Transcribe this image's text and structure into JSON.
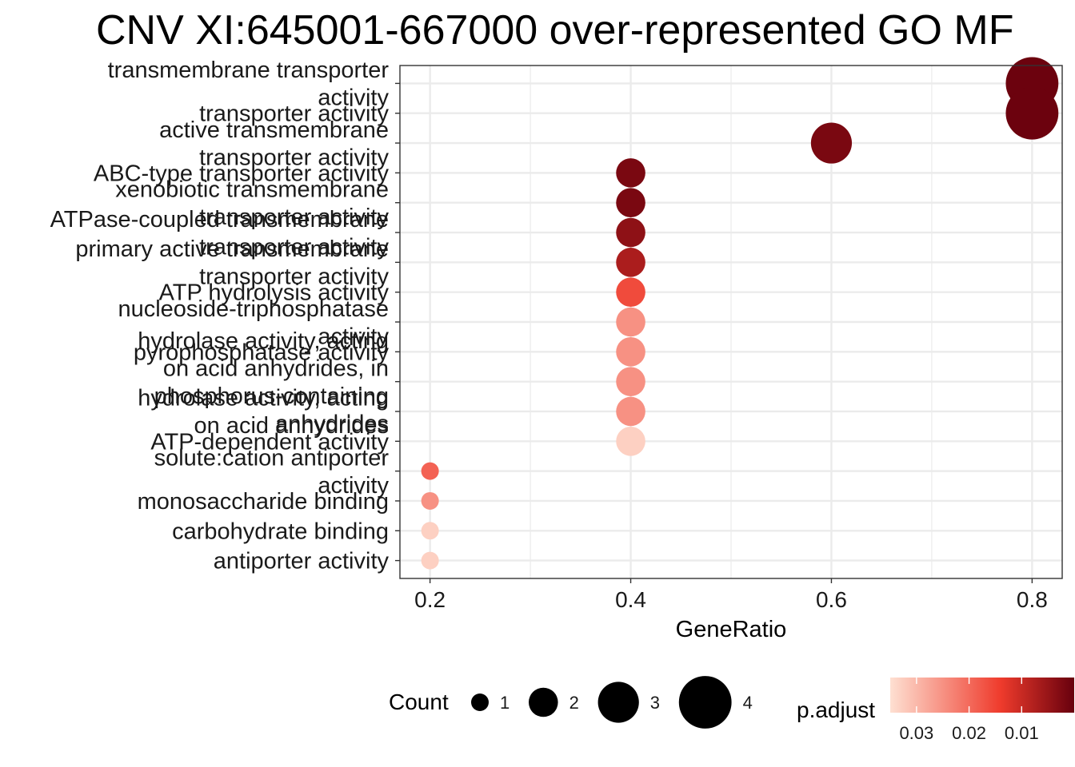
{
  "chart_data": {
    "type": "scatter",
    "title": "CNV XI:645001-667000 over-represented GO MF",
    "xlabel": "GeneRatio",
    "xlim": [
      0.17,
      0.83
    ],
    "xticks": [
      0.2,
      0.4,
      0.6,
      0.8
    ],
    "xtick_labels": [
      "0.2",
      "0.4",
      "0.6",
      "0.8"
    ],
    "grid": true,
    "categories": [
      {
        "lines": [
          "transmembrane transporter",
          "activity"
        ],
        "x": 0.8,
        "count": 4,
        "p_adjust": 0.0005
      },
      {
        "lines": [
          "transporter activity"
        ],
        "x": 0.8,
        "count": 4,
        "p_adjust": 0.0005
      },
      {
        "lines": [
          "active transmembrane",
          "transporter activity"
        ],
        "x": 0.6,
        "count": 3,
        "p_adjust": 0.002
      },
      {
        "lines": [
          "ABC-type transporter activity"
        ],
        "x": 0.4,
        "count": 2,
        "p_adjust": 0.002
      },
      {
        "lines": [
          "xenobiotic transmembrane",
          "transporter activity"
        ],
        "x": 0.4,
        "count": 2,
        "p_adjust": 0.002
      },
      {
        "lines": [
          "ATPase-coupled transmembrane",
          "transporter activity"
        ],
        "x": 0.4,
        "count": 2,
        "p_adjust": 0.004
      },
      {
        "lines": [
          "primary active transmembrane",
          "transporter activity"
        ],
        "x": 0.4,
        "count": 2,
        "p_adjust": 0.007
      },
      {
        "lines": [
          "ATP hydrolysis activity"
        ],
        "x": 0.4,
        "count": 2,
        "p_adjust": 0.016
      },
      {
        "lines": [
          "nucleoside-triphosphatase",
          "activity"
        ],
        "x": 0.4,
        "count": 2,
        "p_adjust": 0.025
      },
      {
        "lines": [
          "pyrophosphatase activity"
        ],
        "x": 0.4,
        "count": 2,
        "p_adjust": 0.025
      },
      {
        "lines": [
          "hydrolase activity, acting",
          "on acid anhydrides, in",
          "phosphorus-containing",
          "anhydrides"
        ],
        "x": 0.4,
        "count": 2,
        "p_adjust": 0.025
      },
      {
        "lines": [
          "hydrolase activity, acting",
          "on acid anhydrides"
        ],
        "x": 0.4,
        "count": 2,
        "p_adjust": 0.025
      },
      {
        "lines": [
          "ATP-dependent activity"
        ],
        "x": 0.4,
        "count": 2,
        "p_adjust": 0.033
      },
      {
        "lines": [
          "solute:cation antiporter",
          "activity"
        ],
        "x": 0.2,
        "count": 1,
        "p_adjust": 0.019
      },
      {
        "lines": [
          "monosaccharide binding"
        ],
        "x": 0.2,
        "count": 1,
        "p_adjust": 0.025
      },
      {
        "lines": [
          "carbohydrate binding"
        ],
        "x": 0.2,
        "count": 1,
        "p_adjust": 0.033
      },
      {
        "lines": [
          "antiporter activity"
        ],
        "x": 0.2,
        "count": 1,
        "p_adjust": 0.033
      }
    ],
    "size_legend": {
      "title": "Count",
      "values": [
        1,
        2,
        3,
        4
      ],
      "labels": [
        "1",
        "2",
        "3",
        "4"
      ]
    },
    "color_legend": {
      "title": "p.adjust",
      "range": [
        0.0,
        0.035
      ],
      "low_color": "#67000d",
      "mid_color": "#ef3b2c",
      "high_color": "#fee0d2",
      "ticks": [
        0.03,
        0.02,
        0.01
      ],
      "tick_labels": [
        "0.03",
        "0.02",
        "0.01"
      ]
    }
  }
}
